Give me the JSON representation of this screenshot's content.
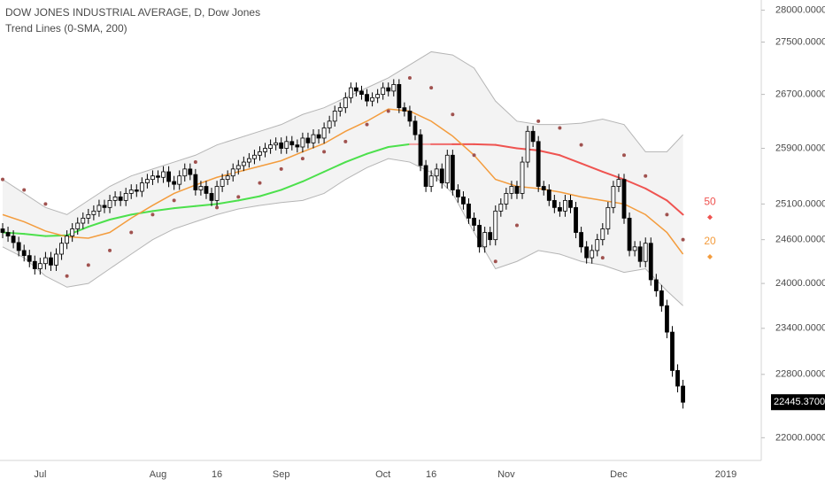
{
  "chart_data": {
    "type": "candlestick",
    "title": "DOW JONES INDUSTRIAL AVERAGE, D, Dow Jones",
    "subtitle": "Trend Lines (0-SMA, 200)",
    "log_scale": true,
    "ylim": [
      21720,
      28160
    ],
    "yticks": [
      {
        "value": 28000,
        "label": "28000.0000"
      },
      {
        "value": 27500,
        "label": "27500.0000"
      },
      {
        "value": 26700,
        "label": "26700.0000"
      },
      {
        "value": 25900,
        "label": "25900.0000"
      },
      {
        "value": 25100,
        "label": "25100.0000"
      },
      {
        "value": 24600,
        "label": "24600.0000"
      },
      {
        "value": 24000,
        "label": "24000.0000"
      },
      {
        "value": 23400,
        "label": "23400.0000"
      },
      {
        "value": 22800,
        "label": "22800.0000"
      },
      {
        "value": 22000,
        "label": "22000.0000"
      }
    ],
    "last_price": {
      "value": 22445.37,
      "label": "22445.3700"
    },
    "up_color": "#ffffff",
    "down_color": "#000000",
    "categories": [
      null,
      null,
      null,
      null,
      null,
      null,
      null,
      "Jul",
      null,
      null,
      null,
      null,
      null,
      null,
      null,
      null,
      null,
      null,
      null,
      null,
      null,
      null,
      null,
      null,
      null,
      null,
      null,
      null,
      null,
      "Aug",
      null,
      null,
      null,
      null,
      null,
      null,
      null,
      null,
      null,
      null,
      "16",
      null,
      null,
      null,
      null,
      null,
      null,
      null,
      null,
      null,
      null,
      null,
      "Sep",
      null,
      null,
      null,
      null,
      null,
      null,
      null,
      null,
      null,
      null,
      null,
      null,
      null,
      null,
      null,
      null,
      null,
      null,
      "Oct",
      null,
      null,
      null,
      null,
      null,
      null,
      null,
      null,
      "16",
      null,
      null,
      null,
      null,
      null,
      null,
      null,
      null,
      null,
      null,
      null,
      null,
      null,
      "Nov",
      null,
      null,
      null,
      null,
      null,
      null,
      null,
      null,
      null,
      null,
      null,
      null,
      null,
      null,
      null,
      null,
      null,
      null,
      null,
      null,
      "Dec",
      null,
      null,
      null,
      null,
      null,
      null,
      null,
      null,
      null,
      null,
      null,
      null,
      null,
      null,
      null,
      null,
      null,
      null,
      null,
      "2019"
    ],
    "open": [
      24750,
      24700,
      24650,
      24560,
      24450,
      24380,
      24300,
      24200,
      24270,
      24350,
      24250,
      24400,
      24550,
      24650,
      24750,
      24830,
      24900,
      24950,
      25000,
      25080,
      25050,
      25150,
      25200,
      25150,
      25250,
      25300,
      25280,
      25400,
      25450,
      25500,
      25480,
      25560,
      25420,
      25380,
      25500,
      25600,
      25520,
      25300,
      25350,
      25250,
      25150,
      25350,
      25450,
      25500,
      25600,
      25650,
      25700,
      25750,
      25800,
      25850,
      25900,
      25950,
      25980,
      25900,
      26000,
      25950,
      25920,
      26050,
      25980,
      26100,
      26050,
      26200,
      26300,
      26450,
      26500,
      26650,
      26800,
      26750,
      26700,
      26600,
      26650,
      26700,
      26800,
      26750,
      26850,
      26500,
      26450,
      26300,
      26100,
      25650,
      25350,
      25500,
      25600,
      25400,
      25800,
      25300,
      25200,
      25100,
      24900,
      24800,
      24500,
      24700,
      24600,
      25000,
      25100,
      25250,
      25350,
      25250,
      25700,
      26150,
      26000,
      25350,
      25300,
      25150,
      25050,
      25000,
      25150,
      25050,
      24700,
      24500,
      24350,
      24450,
      24600,
      24750,
      25050,
      25350,
      25450,
      24900,
      24450,
      24500,
      24300,
      24550,
      24050,
      23900,
      23700,
      23350,
      22850,
      22650,
      null,
      null,
      null,
      null,
      null,
      null,
      null,
      null
    ],
    "high": [
      24830,
      24780,
      24730,
      24640,
      24530,
      24460,
      24380,
      24350,
      24430,
      24430,
      24480,
      24630,
      24730,
      24830,
      24910,
      24980,
      25030,
      25080,
      25160,
      25160,
      25230,
      25280,
      25280,
      25330,
      25380,
      25380,
      25480,
      25530,
      25580,
      25580,
      25640,
      25640,
      25500,
      25580,
      25680,
      25680,
      25600,
      25430,
      25430,
      25330,
      25430,
      25530,
      25580,
      25680,
      25730,
      25780,
      25830,
      25880,
      25930,
      25980,
      26030,
      26060,
      26060,
      26080,
      26080,
      26030,
      26130,
      26130,
      26180,
      26180,
      26280,
      26380,
      26530,
      26580,
      26730,
      26880,
      26880,
      26830,
      26780,
      26730,
      26780,
      26880,
      26880,
      26930,
      26930,
      26580,
      26530,
      26380,
      26180,
      25730,
      25580,
      25680,
      25680,
      25880,
      25880,
      25380,
      25280,
      25180,
      24980,
      24880,
      24780,
      24780,
      25080,
      25180,
      25330,
      25430,
      25430,
      25780,
      26230,
      26230,
      26080,
      25430,
      25380,
      25230,
      25130,
      25230,
      25230,
      25130,
      24780,
      24580,
      24530,
      24680,
      24830,
      25130,
      25430,
      25530,
      25530,
      24980,
      24580,
      24580,
      24630,
      24630,
      24130,
      23980,
      23780,
      23430,
      22930,
      22730,
      null,
      null,
      null,
      null,
      null,
      null,
      null,
      null
    ],
    "low": [
      24620,
      24570,
      24480,
      24370,
      24300,
      24220,
      24120,
      24120,
      24190,
      24170,
      24170,
      24320,
      24470,
      24570,
      24670,
      24750,
      24820,
      24870,
      24920,
      24970,
      24970,
      25070,
      25070,
      25070,
      25170,
      25200,
      25200,
      25320,
      25370,
      25400,
      25400,
      25340,
      25300,
      25300,
      25420,
      25440,
      25220,
      25220,
      25170,
      25070,
      25070,
      25270,
      25370,
      25420,
      25520,
      25570,
      25620,
      25670,
      25720,
      25770,
      25820,
      25870,
      25820,
      25820,
      25870,
      25840,
      25840,
      25900,
      25900,
      25970,
      25970,
      26120,
      26220,
      26370,
      26420,
      26570,
      26670,
      26620,
      26520,
      26520,
      26570,
      26620,
      26670,
      26670,
      26420,
      26370,
      26220,
      26020,
      25570,
      25270,
      25270,
      25420,
      25320,
      25320,
      25220,
      25120,
      25020,
      24820,
      24720,
      24420,
      24420,
      24520,
      24520,
      24920,
      25020,
      25170,
      25170,
      25170,
      25620,
      25920,
      25270,
      25220,
      25070,
      24970,
      24920,
      24920,
      24970,
      24620,
      24420,
      24270,
      24270,
      24370,
      24520,
      24670,
      24970,
      25270,
      24820,
      24370,
      24370,
      24220,
      24220,
      23970,
      23820,
      23620,
      23270,
      22770,
      22570,
      22365,
      null,
      null,
      null,
      null,
      null,
      null,
      null,
      null
    ],
    "close": [
      24700,
      24650,
      24560,
      24450,
      24380,
      24300,
      24200,
      24270,
      24350,
      24250,
      24400,
      24550,
      24650,
      24750,
      24830,
      24900,
      24950,
      25000,
      25080,
      25050,
      25150,
      25200,
      25150,
      25250,
      25300,
      25280,
      25400,
      25450,
      25500,
      25480,
      25560,
      25420,
      25380,
      25500,
      25600,
      25520,
      25300,
      25350,
      25250,
      25150,
      25350,
      25450,
      25500,
      25600,
      25650,
      25700,
      25750,
      25800,
      25850,
      25900,
      25950,
      25980,
      25900,
      26000,
      25950,
      25920,
      26050,
      25980,
      26100,
      26050,
      26200,
      26300,
      26450,
      26500,
      26650,
      26800,
      26750,
      26700,
      26600,
      26650,
      26700,
      26800,
      26750,
      26850,
      26500,
      26450,
      26300,
      26100,
      25650,
      25350,
      25500,
      25600,
      25400,
      25800,
      25300,
      25200,
      25100,
      24900,
      24800,
      24500,
      24700,
      24600,
      25000,
      25100,
      25250,
      25350,
      25250,
      25700,
      26150,
      26000,
      25350,
      25300,
      25150,
      25050,
      25000,
      25150,
      25050,
      24700,
      24500,
      24350,
      24450,
      24600,
      24750,
      25050,
      25350,
      25450,
      24900,
      24450,
      24500,
      24300,
      24550,
      24050,
      23900,
      23700,
      23350,
      22850,
      22650,
      22445,
      null,
      null,
      null,
      null,
      null,
      null,
      null,
      null
    ],
    "bands": {
      "color": "#b5b5b5",
      "fill": "#f3f3f3",
      "x": [
        0,
        4,
        8,
        12,
        16,
        20,
        24,
        28,
        32,
        36,
        40,
        44,
        48,
        52,
        56,
        60,
        64,
        68,
        72,
        76,
        80,
        84,
        88,
        92,
        96,
        100,
        104,
        108,
        112,
        116,
        120,
        124,
        127
      ],
      "upper": [
        25450,
        25250,
        25050,
        24950,
        25150,
        25350,
        25500,
        25600,
        25700,
        25800,
        25950,
        26050,
        26150,
        26250,
        26400,
        26500,
        26650,
        26800,
        26950,
        27150,
        27350,
        27300,
        27100,
        26600,
        26300,
        26250,
        26250,
        26270,
        26330,
        26250,
        25850,
        25850,
        26100
      ],
      "lower": [
        24500,
        24350,
        24100,
        23950,
        24000,
        24200,
        24400,
        24600,
        24750,
        24850,
        24950,
        25030,
        25080,
        25120,
        25150,
        25250,
        25450,
        25620,
        25750,
        25700,
        25550,
        25250,
        24700,
        24200,
        24300,
        24450,
        24400,
        24300,
        24250,
        24150,
        24200,
        23900,
        23700
      ]
    },
    "series": [
      {
        "name": "50",
        "color": "#ef5350",
        "x": [
          0,
          4,
          8,
          12,
          16,
          20,
          24,
          28,
          32,
          36,
          40,
          44,
          48,
          52,
          56,
          60,
          64,
          68,
          72,
          76,
          80,
          84,
          88,
          92,
          96,
          100,
          104,
          108,
          112,
          116,
          120,
          124,
          127
        ],
        "values": [
          24700,
          24680,
          24650,
          24660,
          24780,
          24880,
          24950,
          25000,
          25040,
          25070,
          25100,
          25150,
          25210,
          25300,
          25420,
          25560,
          25700,
          25820,
          25920,
          25960,
          25960,
          25960,
          25960,
          25950,
          25900,
          25870,
          25800,
          25680,
          25560,
          25450,
          25320,
          25150,
          24950
        ],
        "colors": [
          "#4ce04c",
          "#4ce04c",
          "#4ce04c",
          "#4ce04c",
          "#4ce04c",
          "#4ce04c",
          "#4ce04c",
          "#4ce04c",
          "#4ce04c",
          "#4ce04c",
          "#4ce04c",
          "#4ce04c",
          "#4ce04c",
          "#4ce04c",
          "#4ce04c",
          "#4ce04c",
          "#4ce04c",
          "#4ce04c",
          "#4ce04c",
          "#4ce04c",
          "#f4a0a0",
          "#f06a6a",
          "#ef5350",
          "#ef5350",
          "#ef5350",
          "#ef5350",
          "#ef5350",
          "#ef5350",
          "#ef5350",
          "#ef5350",
          "#ef5350",
          "#ef5350",
          "#ef5350"
        ]
      },
      {
        "name": "20",
        "color": "#f39c3d",
        "x": [
          0,
          4,
          8,
          12,
          16,
          20,
          24,
          28,
          32,
          36,
          40,
          44,
          48,
          52,
          56,
          60,
          64,
          68,
          72,
          76,
          80,
          84,
          88,
          92,
          96,
          100,
          104,
          108,
          112,
          116,
          120,
          124,
          127
        ],
        "values": [
          24950,
          24850,
          24720,
          24640,
          24620,
          24700,
          24900,
          25080,
          25250,
          25370,
          25480,
          25560,
          25640,
          25720,
          25850,
          25970,
          26150,
          26300,
          26480,
          26450,
          26300,
          26080,
          25800,
          25450,
          25350,
          25320,
          25270,
          25200,
          25150,
          25100,
          24950,
          24700,
          24400
        ]
      }
    ],
    "sar": {
      "color": "#a0524f",
      "x": [
        0,
        4,
        8,
        12,
        16,
        20,
        24,
        28,
        32,
        36,
        40,
        44,
        48,
        52,
        56,
        60,
        64,
        68,
        72,
        76,
        80,
        84,
        88,
        92,
        96,
        100,
        104,
        108,
        112,
        116,
        120,
        124,
        127
      ],
      "values": [
        25450,
        25300,
        25100,
        24100,
        24250,
        24450,
        24700,
        24950,
        25150,
        25700,
        25050,
        25200,
        25400,
        25600,
        25750,
        25850,
        26000,
        26250,
        26450,
        26950,
        26800,
        26400,
        25800,
        24300,
        24800,
        26300,
        26200,
        25950,
        24350,
        25800,
        25500,
        24950,
        24600
      ]
    }
  }
}
